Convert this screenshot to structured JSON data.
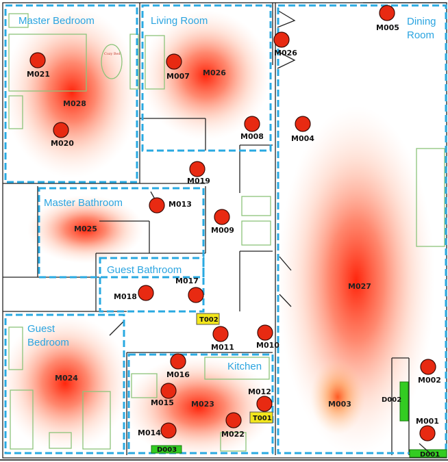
{
  "rooms": {
    "master_bedroom": "Master Bedroom",
    "living_room": "Living Room",
    "dining_room_line1": "Dining",
    "dining_room_line2": "Room",
    "master_bathroom": "Master Bathroom",
    "guest_bathroom": "Guest Bathroom",
    "guest_bedroom_line1": "Guest",
    "guest_bedroom_line2": "Bedroom",
    "kitchen": "Kitchen"
  },
  "sensors": {
    "M001": "M001",
    "M002": "M002",
    "M003": "M003",
    "M004": "M004",
    "M005": "M005",
    "M007": "M007",
    "M008": "M008",
    "M009": "M009",
    "M010": "M010",
    "M011": "M011",
    "M012": "M012",
    "M013": "M013",
    "M014": "M014",
    "M015": "M015",
    "M016": "M016",
    "M017": "M017",
    "M018": "M018",
    "M019": "M019",
    "M020": "M020",
    "M021": "M021",
    "M022": "M022",
    "M023": "M023",
    "M024": "M024",
    "M025": "M025",
    "M026": "M026",
    "M027": "M027",
    "M028": "M028"
  },
  "temperature_sensors": {
    "T001": "T001",
    "T002": "T002"
  },
  "door_sensors": {
    "D001": "D001",
    "D002": "D002",
    "D003": "D003"
  },
  "bed_annotation": "Cozy Bed",
  "colors": {
    "sensor_fill": "#e82a12",
    "zone_dash": "#29a9e1",
    "room_label": "#2aa4e0",
    "furniture": "#8bc47a",
    "temp_tag": "#f3e61c",
    "door_tag": "#33cc22",
    "heat": "#ff1a00"
  }
}
